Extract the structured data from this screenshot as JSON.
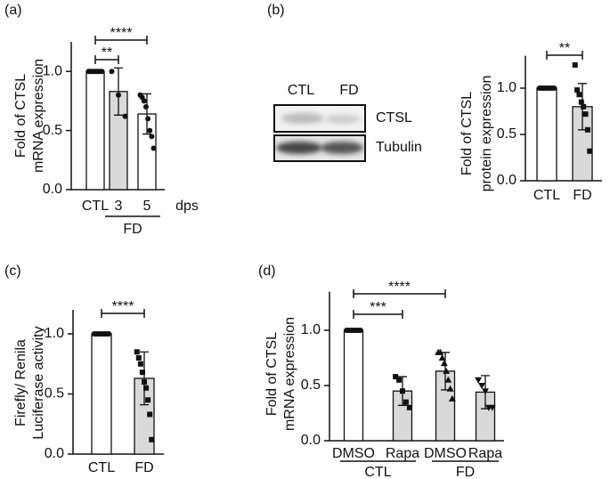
{
  "chart_data": [
    {
      "type": "bar",
      "panel_label": "(a)",
      "ylabel": [
        "Fold of CTSL",
        "mRNA expression"
      ],
      "xlabel": "dps",
      "categories": [
        "CTL",
        "3",
        "5"
      ],
      "values": [
        1.0,
        0.83,
        0.64
      ],
      "errors": [
        0,
        0.2,
        0.17
      ],
      "colors": [
        "#ffffff",
        "#d9d9d9",
        "#ffffff"
      ],
      "markers": [
        "circle",
        "circle",
        "circle"
      ],
      "points": [
        [
          1,
          1,
          1,
          1,
          1,
          1,
          1,
          1
        ],
        [
          1.0,
          0.8,
          0.62
        ],
        [
          0.8,
          0.78,
          0.75,
          0.7,
          0.6,
          0.5,
          0.45,
          0.35
        ]
      ],
      "groups": [
        {
          "label": "FD",
          "members": [
            1,
            2
          ]
        }
      ],
      "comparisons": [
        {
          "label": "**",
          "between": [
            0,
            1
          ]
        },
        {
          "label": "****",
          "between": [
            0,
            2
          ]
        }
      ],
      "ylim": [
        0,
        1.25
      ],
      "yticks": [
        {
          "value": 0,
          "label": "0.0"
        },
        {
          "value": 0.5,
          "label": "0.5"
        },
        {
          "value": 1,
          "label": "1.0"
        }
      ]
    },
    {
      "type": "bar",
      "panel_label": "(b)",
      "ylabel": [
        "Fold of CTSL",
        "protein expression"
      ],
      "categories": [
        "CTL",
        "FD"
      ],
      "values": [
        1.0,
        0.8
      ],
      "errors": [
        0,
        0.25
      ],
      "colors": [
        "#ffffff",
        "#d9d9d9"
      ],
      "markers": [
        "circle",
        "square"
      ],
      "points": [
        [
          1,
          1,
          1,
          1,
          1,
          1,
          1,
          1
        ],
        [
          1.25,
          0.98,
          0.93,
          0.85,
          0.8,
          0.72,
          0.55,
          0.32
        ]
      ],
      "comparisons": [
        {
          "label": "**",
          "between": [
            0,
            1
          ]
        }
      ],
      "ylim": [
        0,
        1.35
      ],
      "yticks": [
        {
          "value": 0,
          "label": "0.0"
        },
        {
          "value": 0.5,
          "label": "0.5"
        },
        {
          "value": 1,
          "label": "1.0"
        }
      ],
      "blot": {
        "columns": [
          "CTL",
          "FD"
        ],
        "rows": [
          "CTSL",
          "Tubulin"
        ]
      }
    },
    {
      "type": "bar",
      "panel_label": "(c)",
      "ylabel": [
        "Firefly/ Renila",
        "Luciferase activity"
      ],
      "categories": [
        "CTL",
        "FD"
      ],
      "values": [
        1.0,
        0.63
      ],
      "errors": [
        0,
        0.22
      ],
      "colors": [
        "#ffffff",
        "#d9d9d9"
      ],
      "markers": [
        "circle",
        "square"
      ],
      "points": [
        [
          1,
          1,
          1,
          1,
          1,
          1,
          1,
          1,
          1,
          1
        ],
        [
          0.85,
          0.8,
          0.75,
          0.68,
          0.6,
          0.55,
          0.45,
          0.33,
          0.12
        ]
      ],
      "comparisons": [
        {
          "label": "****",
          "between": [
            0,
            1
          ]
        }
      ],
      "ylim": [
        0,
        1.2
      ],
      "yticks": [
        {
          "value": 0,
          "label": "0.0"
        },
        {
          "value": 0.5,
          "label": "0.5"
        },
        {
          "value": 1,
          "label": "1.0"
        }
      ]
    },
    {
      "type": "bar",
      "panel_label": "(d)",
      "ylabel": [
        "Fold of CTSL",
        "mRNA expression"
      ],
      "categories": [
        "DMSO",
        "Rapa",
        "DMSO",
        "Rapa"
      ],
      "values": [
        1.0,
        0.45,
        0.63,
        0.44
      ],
      "errors": [
        0,
        0.13,
        0.17,
        0.15
      ],
      "colors": [
        "#ffffff",
        "#d9d9d9",
        "#d9d9d9",
        "#d9d9d9"
      ],
      "markers": [
        "circle",
        "square",
        "triangle",
        "triangle-down"
      ],
      "points": [
        [
          1,
          1,
          1,
          1,
          1,
          1,
          1,
          1,
          1,
          1
        ],
        [
          0.58,
          0.55,
          0.45,
          0.35,
          0.3
        ],
        [
          0.8,
          0.8,
          0.75,
          0.7,
          0.63,
          0.55,
          0.47,
          0.38
        ],
        [
          0.55,
          0.5,
          0.45,
          0.3,
          0.3
        ]
      ],
      "groups": [
        {
          "label": "CTL",
          "members": [
            0,
            1
          ]
        },
        {
          "label": "FD",
          "members": [
            2,
            3
          ]
        }
      ],
      "comparisons": [
        {
          "label": "***",
          "between": [
            0,
            1
          ]
        },
        {
          "label": "****",
          "between": [
            0,
            2
          ]
        }
      ],
      "ylim": [
        0,
        1.35
      ],
      "yticks": [
        {
          "value": 0,
          "label": "0.0"
        },
        {
          "value": 0.5,
          "label": "0.5"
        },
        {
          "value": 1,
          "label": "1.0"
        }
      ]
    }
  ]
}
